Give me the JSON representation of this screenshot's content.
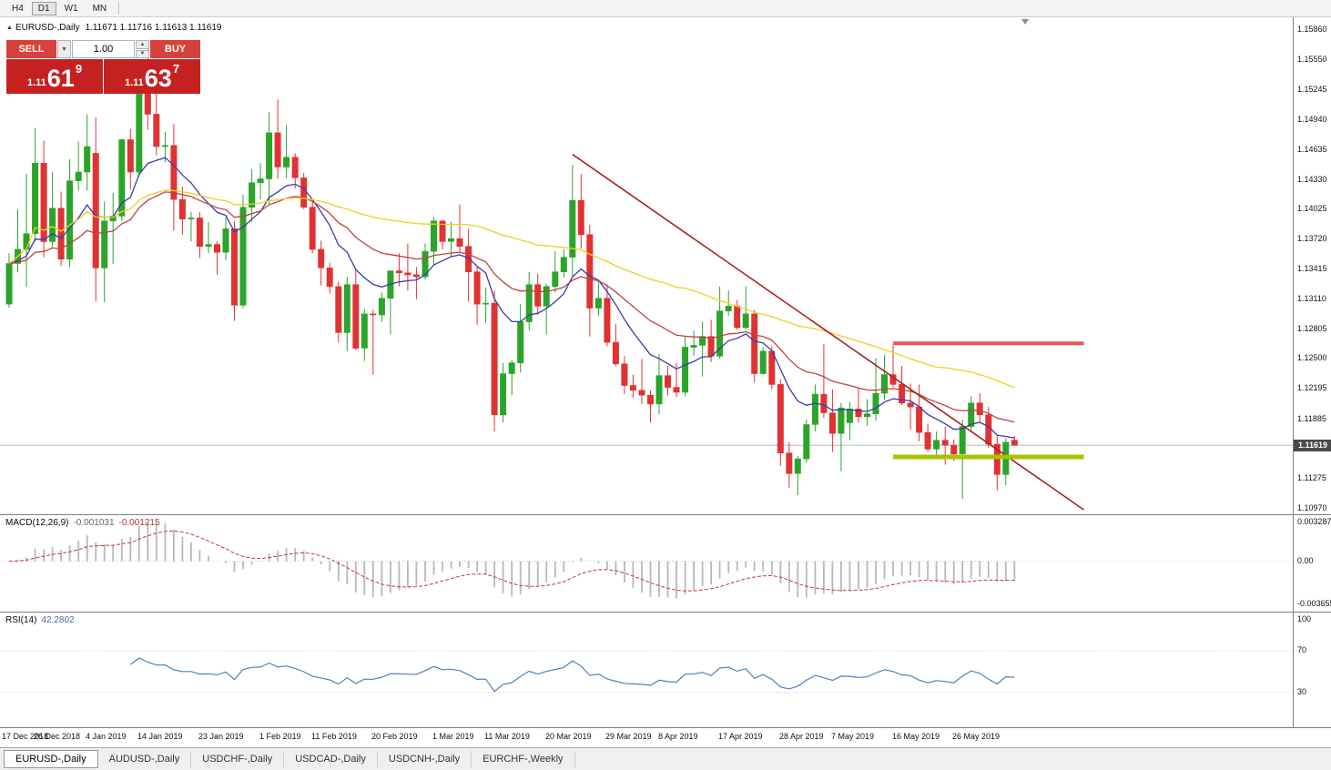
{
  "toolbar": {
    "timeframes": [
      {
        "label": "H4",
        "active": false
      },
      {
        "label": "D1",
        "active": true
      },
      {
        "label": "W1",
        "active": false
      },
      {
        "label": "MN",
        "active": false
      }
    ]
  },
  "chart": {
    "symbol_label": "EURUSD-,Daily",
    "ohlc_text": "1.11671 1.11716 1.11613 1.11619"
  },
  "trade_panel": {
    "sell_label": "SELL",
    "buy_label": "BUY",
    "volume": "1.00",
    "sell_price_big": "1.11",
    "sell_price_pips": "61",
    "sell_price_point": "9",
    "buy_price_big": "1.11",
    "buy_price_pips": "63",
    "buy_price_point": "7"
  },
  "price_axis": {
    "labels": [
      "1.15860",
      "1.15550",
      "1.15245",
      "1.14940",
      "1.14635",
      "1.14330",
      "1.14025",
      "1.13720",
      "1.13415",
      "1.13110",
      "1.12805",
      "1.12500",
      "1.12195",
      "1.11885",
      "1.11275",
      "1.10970"
    ],
    "current": "1.11619"
  },
  "macd_panel": {
    "label": "MACD(12,26,9)",
    "main_value": "-0.001031",
    "signal_value": "-0.001215",
    "axis_labels": [
      "0.003287",
      "0.00",
      "-0.003655"
    ]
  },
  "rsi_panel": {
    "label": "RSI(14)",
    "value": "42.2802",
    "axis_labels": [
      "100",
      "70",
      "30"
    ]
  },
  "tab_bar": {
    "tabs": [
      {
        "label": "EURUSD-,Daily",
        "active": true
      },
      {
        "label": "AUDUSD-,Daily",
        "active": false
      },
      {
        "label": "USDCHF-,Daily",
        "active": false
      },
      {
        "label": "USDCAD-,Daily",
        "active": false
      },
      {
        "label": "USDCNH-,Daily",
        "active": false
      },
      {
        "label": "EURCHF-,Weekly",
        "active": false
      }
    ]
  },
  "chart_data": {
    "type": "candlestick",
    "symbol": "EURUSD-",
    "timeframe": "Daily",
    "ylim": [
      1.1097,
      1.1586
    ],
    "current_price": 1.11619,
    "candle_up_color": "#2aa52a",
    "candle_down_color": "#e03232",
    "candles": [
      [
        1.1306,
        1.1358,
        1.13025,
        1.13475
      ],
      [
        1.13475,
        1.14025,
        1.13385,
        1.1362
      ],
      [
        1.1362,
        1.1439,
        1.13235,
        1.1378
      ],
      [
        1.1378,
        1.1486,
        1.137,
        1.145
      ],
      [
        1.145,
        1.1473,
        1.1354,
        1.137
      ],
      [
        1.137,
        1.1441,
        1.1364,
        1.1404
      ],
      [
        1.1404,
        1.1421,
        1.1345,
        1.1352
      ],
      [
        1.1352,
        1.1454,
        1.1344,
        1.1432
      ],
      [
        1.1432,
        1.1472,
        1.1422,
        1.1441
      ],
      [
        1.1441,
        1.15,
        1.1422,
        1.1467
      ],
      [
        1.146,
        1.1497,
        1.1309,
        1.1343
      ],
      [
        1.1343,
        1.1411,
        1.1308,
        1.1391
      ],
      [
        1.1391,
        1.142,
        1.1347,
        1.1396
      ],
      [
        1.1396,
        1.1475,
        1.1391,
        1.1474
      ],
      [
        1.1474,
        1.1485,
        1.1423,
        1.1441
      ],
      [
        1.1441,
        1.1554,
        1.1436,
        1.1544
      ],
      [
        1.1544,
        1.157,
        1.1484,
        1.15
      ],
      [
        1.15,
        1.1541,
        1.1458,
        1.1467
      ],
      [
        1.1467,
        1.1482,
        1.1451,
        1.1468
      ],
      [
        1.1468,
        1.149,
        1.1381,
        1.1413
      ],
      [
        1.1413,
        1.1426,
        1.1377,
        1.1393
      ],
      [
        1.1393,
        1.14,
        1.137,
        1.1394
      ],
      [
        1.1394,
        1.14,
        1.1353,
        1.1365
      ],
      [
        1.1365,
        1.139,
        1.1358,
        1.1367
      ],
      [
        1.1367,
        1.137,
        1.1336,
        1.1359
      ],
      [
        1.1359,
        1.1395,
        1.1351,
        1.1383
      ],
      [
        1.1383,
        1.1391,
        1.1289,
        1.1305
      ],
      [
        1.1305,
        1.1418,
        1.1302,
        1.1405
      ],
      [
        1.1405,
        1.1444,
        1.139,
        1.143
      ],
      [
        1.143,
        1.145,
        1.1413,
        1.1434
      ],
      [
        1.1434,
        1.1502,
        1.1407,
        1.1481
      ],
      [
        1.1481,
        1.1515,
        1.1434,
        1.1446
      ],
      [
        1.1446,
        1.1489,
        1.1435,
        1.1456
      ],
      [
        1.1456,
        1.146,
        1.1424,
        1.1435
      ],
      [
        1.1435,
        1.144,
        1.1403,
        1.1405
      ],
      [
        1.1405,
        1.1411,
        1.1358,
        1.1362
      ],
      [
        1.1362,
        1.1371,
        1.1325,
        1.1343
      ],
      [
        1.1343,
        1.1348,
        1.1317,
        1.1324
      ],
      [
        1.1324,
        1.1329,
        1.1267,
        1.1277
      ],
      [
        1.1277,
        1.1334,
        1.1258,
        1.1326
      ],
      [
        1.1326,
        1.1342,
        1.1259,
        1.1261
      ],
      [
        1.1261,
        1.1301,
        1.1248,
        1.1296
      ],
      [
        1.1296,
        1.13,
        1.1234,
        1.1295
      ],
      [
        1.1295,
        1.1318,
        1.1288,
        1.1312
      ],
      [
        1.1312,
        1.134,
        1.1275,
        1.134
      ],
      [
        1.134,
        1.1358,
        1.1324,
        1.1338
      ],
      [
        1.1338,
        1.1368,
        1.132,
        1.1336
      ],
      [
        1.1336,
        1.1344,
        1.1311,
        1.1334
      ],
      [
        1.1334,
        1.1368,
        1.1331,
        1.136
      ],
      [
        1.136,
        1.1395,
        1.1345,
        1.1391
      ],
      [
        1.1391,
        1.1392,
        1.1362,
        1.137
      ],
      [
        1.137,
        1.139,
        1.1355,
        1.1373
      ],
      [
        1.1373,
        1.1408,
        1.1358,
        1.1365
      ],
      [
        1.1365,
        1.1383,
        1.1309,
        1.1339
      ],
      [
        1.1339,
        1.1344,
        1.1285,
        1.1306
      ],
      [
        1.1306,
        1.1323,
        1.1287,
        1.1307
      ],
      [
        1.1307,
        1.132,
        1.1176,
        1.1193
      ],
      [
        1.1193,
        1.1246,
        1.1185,
        1.1235
      ],
      [
        1.1235,
        1.1249,
        1.1213,
        1.1246
      ],
      [
        1.1246,
        1.1306,
        1.1236,
        1.1288
      ],
      [
        1.1288,
        1.1339,
        1.1279,
        1.1326
      ],
      [
        1.1326,
        1.1337,
        1.1295,
        1.1304
      ],
      [
        1.1304,
        1.1327,
        1.1275,
        1.1324
      ],
      [
        1.1324,
        1.136,
        1.1318,
        1.1339
      ],
      [
        1.1339,
        1.1362,
        1.1333,
        1.1354
      ],
      [
        1.1354,
        1.1448,
        1.1335,
        1.1412
      ],
      [
        1.1412,
        1.1439,
        1.1363,
        1.1377
      ],
      [
        1.1377,
        1.1387,
        1.1273,
        1.1302
      ],
      [
        1.1302,
        1.1331,
        1.1294,
        1.1312
      ],
      [
        1.1312,
        1.1326,
        1.1263,
        1.1267
      ],
      [
        1.1267,
        1.1286,
        1.1243,
        1.1245
      ],
      [
        1.1245,
        1.1253,
        1.1214,
        1.1223
      ],
      [
        1.1223,
        1.1234,
        1.121,
        1.1218
      ],
      [
        1.1218,
        1.125,
        1.1204,
        1.1213
      ],
      [
        1.1213,
        1.1218,
        1.1185,
        1.1204
      ],
      [
        1.1204,
        1.1255,
        1.1194,
        1.1233
      ],
      [
        1.1233,
        1.1243,
        1.1213,
        1.1221
      ],
      [
        1.1221,
        1.1246,
        1.1211,
        1.1216
      ],
      [
        1.1216,
        1.1273,
        1.1212,
        1.1262
      ],
      [
        1.1262,
        1.1279,
        1.1253,
        1.1264
      ],
      [
        1.1264,
        1.1288,
        1.1232,
        1.1273
      ],
      [
        1.1273,
        1.129,
        1.1247,
        1.1253
      ],
      [
        1.1253,
        1.1324,
        1.125,
        1.1299
      ],
      [
        1.1299,
        1.132,
        1.1294,
        1.1304
      ],
      [
        1.1304,
        1.131,
        1.128,
        1.1282
      ],
      [
        1.1282,
        1.1324,
        1.128,
        1.1296
      ],
      [
        1.1296,
        1.13,
        1.1226,
        1.1235
      ],
      [
        1.1235,
        1.1262,
        1.1234,
        1.1258
      ],
      [
        1.1258,
        1.1263,
        1.1219,
        1.1224
      ],
      [
        1.1224,
        1.1229,
        1.1141,
        1.1154
      ],
      [
        1.1154,
        1.1165,
        1.1118,
        1.1133
      ],
      [
        1.1133,
        1.1151,
        1.1111,
        1.1148
      ],
      [
        1.1148,
        1.1188,
        1.1144,
        1.1183
      ],
      [
        1.1183,
        1.1224,
        1.1176,
        1.1214
      ],
      [
        1.1214,
        1.1265,
        1.119,
        1.1195
      ],
      [
        1.1195,
        1.1219,
        1.1155,
        1.1174
      ],
      [
        1.1174,
        1.1205,
        1.1135,
        1.12
      ],
      [
        1.1185,
        1.1206,
        1.1167,
        1.1199
      ],
      [
        1.1199,
        1.122,
        1.1185,
        1.1191
      ],
      [
        1.1191,
        1.1209,
        1.1182,
        1.1194
      ],
      [
        1.1194,
        1.1251,
        1.1187,
        1.1215
      ],
      [
        1.1215,
        1.1254,
        1.1208,
        1.1234
      ],
      [
        1.1234,
        1.1264,
        1.1221,
        1.1224
      ],
      [
        1.1224,
        1.1243,
        1.1203,
        1.1205
      ],
      [
        1.1205,
        1.1225,
        1.1178,
        1.1201
      ],
      [
        1.1201,
        1.1224,
        1.1166,
        1.1175
      ],
      [
        1.1175,
        1.1184,
        1.1155,
        1.1158
      ],
      [
        1.1158,
        1.1176,
        1.115,
        1.1167
      ],
      [
        1.1167,
        1.1181,
        1.1142,
        1.1162
      ],
      [
        1.1162,
        1.1168,
        1.1146,
        1.1153
      ],
      [
        1.1153,
        1.1188,
        1.1107,
        1.1181
      ],
      [
        1.1181,
        1.1212,
        1.1175,
        1.1205
      ],
      [
        1.1205,
        1.1215,
        1.1186,
        1.1193
      ],
      [
        1.1193,
        1.1201,
        1.1159,
        1.1163
      ],
      [
        1.1163,
        1.1172,
        1.1116,
        1.1132
      ],
      [
        1.1132,
        1.1169,
        1.1121,
        1.1165
      ],
      [
        1.11671,
        1.11716,
        1.11613,
        1.11619
      ]
    ],
    "date_labels": [
      {
        "label": "17 Dec 2018",
        "idx": 0
      },
      {
        "label": "26 Dec 2018",
        "idx": 6
      },
      {
        "label": "4 Jan 2019",
        "idx": 12
      },
      {
        "label": "14 Jan 2019",
        "idx": 18
      },
      {
        "label": "23 Jan 2019",
        "idx": 25
      },
      {
        "label": "1 Feb 2019",
        "idx": 32
      },
      {
        "label": "11 Feb 2019",
        "idx": 38
      },
      {
        "label": "20 Feb 2019",
        "idx": 45
      },
      {
        "label": "1 Mar 2019",
        "idx": 52
      },
      {
        "label": "11 Mar 2019",
        "idx": 58
      },
      {
        "label": "20 Mar 2019",
        "idx": 65
      },
      {
        "label": "29 Mar 2019",
        "idx": 72
      },
      {
        "label": "8 Apr 2019",
        "idx": 78
      },
      {
        "label": "17 Apr 2019",
        "idx": 85
      },
      {
        "label": "28 Apr 2019",
        "idx": 92
      },
      {
        "label": "7 May 2019",
        "idx": 98
      },
      {
        "label": "16 May 2019",
        "idx": 105
      },
      {
        "label": "26 May 2019",
        "idx": 112
      }
    ],
    "moving_averages": [
      {
        "name": "ma-fast",
        "period": 10,
        "method": "ema",
        "color": "#3a3ab0"
      },
      {
        "name": "ma-mid",
        "period": 24,
        "method": "ema",
        "color": "#c04040"
      },
      {
        "name": "ma-slow",
        "period": 52,
        "method": "sma",
        "color": "#eecf20"
      }
    ],
    "annotations": {
      "trendline": {
        "from_idx": 65,
        "from_price": 1.1459,
        "to_idx": 124,
        "to_price": 1.1096,
        "color": "#aa2222"
      },
      "resistance_line": {
        "from_idx": 102,
        "to_idx": 124,
        "price": 1.1266,
        "color": "#ef5350",
        "thickness": 4
      },
      "support_line": {
        "from_idx": 102,
        "to_idx": 124,
        "price": 1.115,
        "color": "#a8c400",
        "thickness": 5
      }
    },
    "macd": {
      "fast": 12,
      "slow": 26,
      "signal": 9,
      "ylim": [
        -0.003655,
        0.003287
      ],
      "hist_color": "#b8b8b8",
      "signal_color": "#cc3434"
    },
    "rsi": {
      "period": 14,
      "ylim": [
        0,
        100
      ],
      "levels": [
        70,
        30
      ],
      "color": "#4f81bd"
    }
  }
}
